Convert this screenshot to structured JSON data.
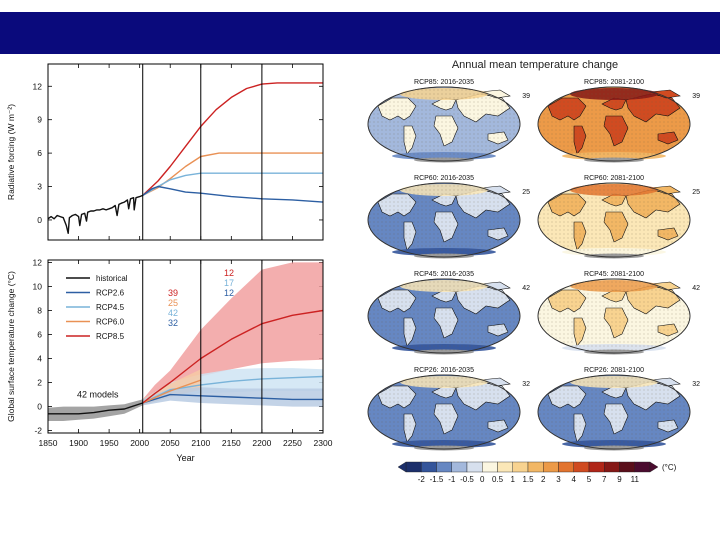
{
  "slide": {
    "title_bar_color": "#0a0a7c"
  },
  "chart_data": [
    {
      "type": "line",
      "id": "radiative-forcing",
      "ylabel": "Radiative forcing (W m⁻²)",
      "yticks": [
        0,
        3,
        6,
        9,
        12
      ],
      "ylim": [
        -1.8,
        14
      ],
      "xlim": [
        1850,
        2300
      ],
      "vlines": [
        2005,
        2100,
        2200
      ],
      "series": [
        {
          "name": "historical",
          "color": "#111111",
          "points": [
            [
              1850,
              0.1
            ],
            [
              1855,
              0.3
            ],
            [
              1860,
              0.1
            ],
            [
              1865,
              0.4
            ],
            [
              1870,
              0.3
            ],
            [
              1875,
              0.2
            ],
            [
              1880,
              -0.5
            ],
            [
              1883,
              -1.2
            ],
            [
              1885,
              0.2
            ],
            [
              1890,
              0.4
            ],
            [
              1895,
              0.5
            ],
            [
              1900,
              0.3
            ],
            [
              1902,
              -0.5
            ],
            [
              1905,
              0.5
            ],
            [
              1910,
              0.6
            ],
            [
              1913,
              -0.1
            ],
            [
              1915,
              0.7
            ],
            [
              1920,
              0.8
            ],
            [
              1925,
              0.8
            ],
            [
              1930,
              0.9
            ],
            [
              1935,
              0.9
            ],
            [
              1940,
              1.0
            ],
            [
              1945,
              0.9
            ],
            [
              1950,
              1.0
            ],
            [
              1955,
              1.1
            ],
            [
              1960,
              1.3
            ],
            [
              1963,
              0.4
            ],
            [
              1966,
              1.4
            ],
            [
              1970,
              1.5
            ],
            [
              1975,
              1.6
            ],
            [
              1980,
              1.8
            ],
            [
              1982,
              1.0
            ],
            [
              1985,
              1.9
            ],
            [
              1990,
              2.0
            ],
            [
              1991,
              0.9
            ],
            [
              1994,
              2.0
            ],
            [
              2000,
              2.1
            ],
            [
              2005,
              2.2
            ]
          ]
        },
        {
          "name": "RCP2.6",
          "color": "#2d5fa3",
          "points": [
            [
              2005,
              2.2
            ],
            [
              2020,
              2.8
            ],
            [
              2030,
              3.0
            ],
            [
              2050,
              2.8
            ],
            [
              2075,
              2.5
            ],
            [
              2100,
              2.4
            ],
            [
              2150,
              2.1
            ],
            [
              2200,
              1.9
            ],
            [
              2250,
              1.8
            ],
            [
              2300,
              1.6
            ]
          ]
        },
        {
          "name": "RCP4.5",
          "color": "#79b3d9",
          "points": [
            [
              2005,
              2.2
            ],
            [
              2030,
              3.0
            ],
            [
              2050,
              3.6
            ],
            [
              2075,
              4.0
            ],
            [
              2100,
              4.2
            ],
            [
              2150,
              4.2
            ],
            [
              2200,
              4.2
            ],
            [
              2300,
              4.2
            ]
          ]
        },
        {
          "name": "RCP6.0",
          "color": "#e99155",
          "points": [
            [
              2005,
              2.2
            ],
            [
              2030,
              2.9
            ],
            [
              2050,
              3.7
            ],
            [
              2075,
              4.8
            ],
            [
              2100,
              5.7
            ],
            [
              2130,
              6.0
            ],
            [
              2200,
              6.0
            ],
            [
              2300,
              6.0
            ]
          ]
        },
        {
          "name": "RCP8.5",
          "color": "#cc2222",
          "points": [
            [
              2005,
              2.2
            ],
            [
              2030,
              3.5
            ],
            [
              2050,
              4.8
            ],
            [
              2075,
              6.6
            ],
            [
              2100,
              8.4
            ],
            [
              2125,
              9.9
            ],
            [
              2150,
              11.0
            ],
            [
              2175,
              11.8
            ],
            [
              2200,
              12.2
            ],
            [
              2225,
              12.3
            ],
            [
              2300,
              12.3
            ]
          ]
        }
      ]
    },
    {
      "type": "area",
      "id": "global-surface-temperature",
      "ylabel": "Global surface temperature change (°C)",
      "xlabel": "Year",
      "xticks": [
        1850,
        1900,
        1950,
        2000,
        2050,
        2100,
        2150,
        2200,
        2250,
        2300
      ],
      "yticks": [
        -2,
        0,
        2,
        4,
        6,
        8,
        10,
        12
      ],
      "ylim": [
        -2.2,
        12.2
      ],
      "xlim": [
        1850,
        2300
      ],
      "vlines": [
        2005,
        2100,
        2200
      ],
      "annotation": "42 models",
      "model_counts": {
        "to_2100": [
          {
            "value": "39",
            "color": "#cc2222"
          },
          {
            "value": "25",
            "color": "#e99155"
          },
          {
            "value": "42",
            "color": "#79b3d9"
          },
          {
            "value": "32",
            "color": "#2d5fa3"
          }
        ],
        "to_2300": [
          {
            "value": "12",
            "color": "#cc2222"
          },
          {
            "value": "17",
            "color": "#79b3d9"
          },
          {
            "value": "12",
            "color": "#2d5fa3"
          }
        ]
      },
      "legend": [
        {
          "label": "historical",
          "color": "#111111"
        },
        {
          "label": "RCP2.6",
          "color": "#2d5fa3"
        },
        {
          "label": "RCP4.5",
          "color": "#79b3d9"
        },
        {
          "label": "RCP6.0",
          "color": "#e99155"
        },
        {
          "label": "RCP8.5",
          "color": "#cc2222"
        }
      ],
      "series": [
        {
          "name": "historical",
          "color": "#111111",
          "band_color": "#9a9a9a",
          "points": [
            [
              1850,
              -0.6,
              -1.2,
              -0.1
            ],
            [
              1875,
              -0.6,
              -1.2,
              0.0
            ],
            [
              1900,
              -0.6,
              -1.1,
              0.0
            ],
            [
              1925,
              -0.5,
              -1.0,
              0.0
            ],
            [
              1950,
              -0.3,
              -0.8,
              0.1
            ],
            [
              1975,
              -0.2,
              -0.6,
              0.2
            ],
            [
              2005,
              0.3,
              0.1,
              0.6
            ]
          ]
        },
        {
          "name": "RCP8.5",
          "color": "#cc2222",
          "band_color": "#f1a0a0",
          "points": [
            [
              2005,
              0.3,
              0.1,
              0.6
            ],
            [
              2025,
              1.1,
              0.6,
              1.8
            ],
            [
              2050,
              2.0,
              1.3,
              3.0
            ],
            [
              2075,
              3.0,
              1.9,
              4.7
            ],
            [
              2100,
              4.0,
              2.5,
              6.4
            ],
            [
              2150,
              5.6,
              3.1,
              9.0
            ],
            [
              2200,
              6.9,
              3.6,
              11.4
            ],
            [
              2250,
              7.6,
              3.8,
              12.0
            ],
            [
              2300,
              8.0,
              3.9,
              12.0
            ]
          ]
        },
        {
          "name": "RCP6.0",
          "color": "#e99155",
          "band_color": "#f6c9a5",
          "points": [
            [
              2005,
              0.3,
              0.1,
              0.6
            ],
            [
              2050,
              1.3,
              0.8,
              1.9
            ],
            [
              2100,
              2.2,
              1.4,
              3.1
            ]
          ]
        },
        {
          "name": "RCP4.5",
          "color": "#79b3d9",
          "band_color": "#cfe4f3",
          "points": [
            [
              2005,
              0.3,
              0.1,
              0.6
            ],
            [
              2050,
              1.4,
              0.9,
              2.0
            ],
            [
              2100,
              1.8,
              1.1,
              2.7
            ],
            [
              2150,
              2.1,
              1.2,
              3.1
            ],
            [
              2200,
              2.3,
              1.3,
              3.2
            ],
            [
              2250,
              2.4,
              1.3,
              3.2
            ],
            [
              2300,
              2.5,
              1.3,
              3.1
            ]
          ]
        },
        {
          "name": "RCP2.6",
          "color": "#2d5fa3",
          "band_color": "#b9cbe3",
          "points": [
            [
              2005,
              0.3,
              0.1,
              0.6
            ],
            [
              2050,
              1.0,
              0.5,
              1.5
            ],
            [
              2100,
              0.9,
              0.3,
              1.6
            ],
            [
              2150,
              0.8,
              0.2,
              1.5
            ],
            [
              2200,
              0.7,
              0.1,
              1.5
            ],
            [
              2250,
              0.6,
              0.0,
              1.5
            ],
            [
              2300,
              0.6,
              0.0,
              1.5
            ]
          ]
        }
      ]
    },
    {
      "type": "heatmap",
      "id": "annual-mean-temperature-maps",
      "title": "Annual mean temperature change",
      "unit": "(°C)",
      "maps": [
        {
          "label": "RCP85: 2016-2035",
          "count": "39",
          "level": 3
        },
        {
          "label": "RCP85: 2081-2100",
          "count": "39",
          "level": 9
        },
        {
          "label": "RCP60: 2016-2035",
          "count": "25",
          "level": 2
        },
        {
          "label": "RCP60: 2081-2100",
          "count": "25",
          "level": 6
        },
        {
          "label": "RCP45: 2016-2035",
          "count": "42",
          "level": 2
        },
        {
          "label": "RCP45: 2081-2100",
          "count": "42",
          "level": 5
        },
        {
          "label": "RCP26: 2016-2035",
          "count": "32",
          "level": 2
        },
        {
          "label": "RCP26: 2081-2100",
          "count": "32",
          "level": 2
        }
      ],
      "colorbar": {
        "labels": [
          "-2",
          "-1.5",
          "-1",
          "-0.5",
          "0",
          "0.5",
          "1",
          "1.5",
          "2",
          "3",
          "4",
          "5",
          "7",
          "9",
          "11"
        ],
        "colors": [
          "#1c2f6b",
          "#34559b",
          "#6687c2",
          "#a3b8dc",
          "#d7e0ee",
          "#fbf6e1",
          "#fbe7b7",
          "#f8d390",
          "#f2b765",
          "#ec9a48",
          "#e2742f",
          "#d04b21",
          "#b02618",
          "#851816",
          "#5a0f1a",
          "#4b0c2f"
        ]
      }
    }
  ]
}
